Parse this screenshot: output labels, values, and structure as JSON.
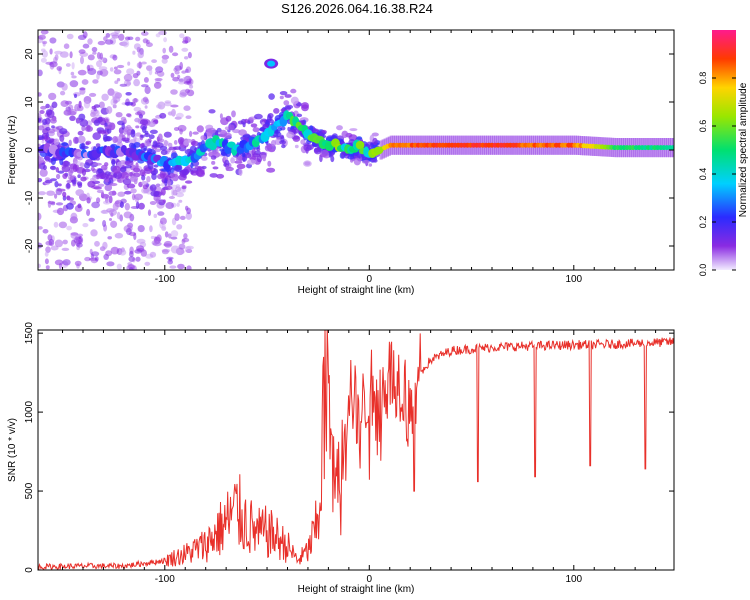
{
  "figure": {
    "title": "S126.2026.064.16.38.R24"
  },
  "chart_data": [
    {
      "type": "heatmap",
      "xlabel": "Height of straight line (km)",
      "ylabel": "Frequency (Hz)",
      "xlim": [
        -162,
        149
      ],
      "ylim": [
        -25,
        25
      ],
      "xticks": [
        -100,
        0,
        100
      ],
      "yticks": [
        -20,
        -10,
        0,
        10,
        20
      ],
      "colorbar": {
        "label": "Normalized spectral amplitude",
        "range": [
          0,
          1
        ],
        "ticks": [
          0.0,
          0.2,
          0.4,
          0.6,
          0.8
        ]
      },
      "ridge": {
        "x": [
          -162,
          -140,
          -120,
          -105,
          -95,
          -85,
          -75,
          -65,
          -55,
          -45,
          -40,
          -35,
          -30,
          -25,
          -20,
          -15,
          -10,
          -5,
          0,
          5,
          10,
          20,
          40,
          60,
          80,
          100,
          120,
          149
        ],
        "freq": [
          0,
          -1,
          0,
          -2,
          -3,
          -1,
          2,
          0,
          2,
          5,
          7,
          5,
          3,
          2,
          1,
          1,
          0,
          1,
          -1,
          0,
          1,
          1,
          1,
          1,
          1,
          1,
          0.5,
          0.5
        ],
        "amplitude": [
          0.1,
          0.12,
          0.15,
          0.2,
          0.3,
          0.3,
          0.35,
          0.3,
          0.35,
          0.4,
          0.4,
          0.45,
          0.45,
          0.5,
          0.5,
          0.5,
          0.45,
          0.5,
          0.45,
          0.6,
          0.8,
          0.85,
          0.9,
          0.9,
          0.85,
          0.85,
          0.55,
          0.45
        ]
      },
      "features": [
        {
          "x": -48,
          "freq": 18,
          "amplitude": 0.35
        }
      ]
    },
    {
      "type": "line",
      "xlabel": "Height of straight line (km)",
      "ylabel": "SNR (10 * v/v)",
      "xlim": [
        -162,
        149
      ],
      "ylim": [
        0,
        1520
      ],
      "xticks": [
        -100,
        0,
        100
      ],
      "yticks": [
        0,
        500,
        1000,
        1500
      ],
      "series": [
        {
          "color": "#e8302a",
          "x": [
            -162,
            -140,
            -120,
            -100,
            -90,
            -80,
            -75,
            -70,
            -65,
            -60,
            -55,
            -50,
            -45,
            -40,
            -35,
            -30,
            -25,
            -22,
            -20,
            -18,
            -15,
            -12,
            -10,
            -5,
            0,
            5,
            10,
            15,
            20,
            22,
            25,
            30,
            40,
            50,
            60,
            80,
            100,
            120,
            140,
            149
          ],
          "values": [
            20,
            25,
            25,
            60,
            100,
            160,
            230,
            300,
            380,
            300,
            230,
            240,
            200,
            150,
            60,
            120,
            300,
            1050,
            1300,
            600,
            650,
            800,
            1200,
            950,
            1150,
            1100,
            1250,
            1200,
            1100,
            1000,
            1250,
            1330,
            1390,
            1400,
            1410,
            1420,
            1425,
            1430,
            1440,
            1445
          ]
        }
      ],
      "dips": [
        {
          "x": 22,
          "value": 500
        },
        {
          "x": 53,
          "value": 560
        },
        {
          "x": 81,
          "value": 590
        },
        {
          "x": 108,
          "value": 660
        },
        {
          "x": 135,
          "value": 640
        }
      ]
    }
  ]
}
